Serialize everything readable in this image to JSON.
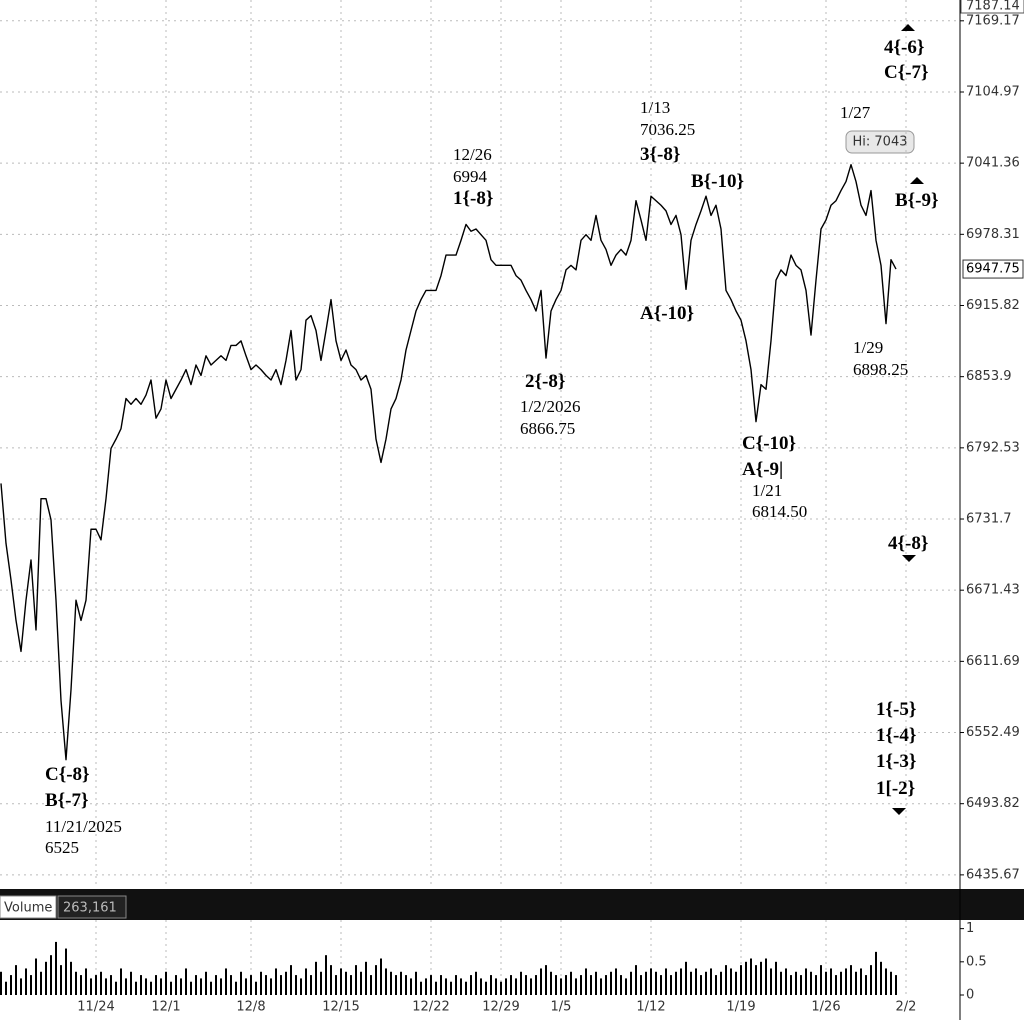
{
  "chart_data": {
    "type": "line",
    "scale": "log",
    "color": "#000000",
    "grid": true,
    "categories": [
      null,
      null,
      null,
      null,
      null,
      null,
      null,
      null,
      null,
      null,
      null,
      null,
      null,
      null,
      null,
      null,
      null,
      null,
      null,
      "11/24",
      null,
      null,
      null,
      null,
      null,
      null,
      null,
      null,
      null,
      null,
      null,
      null,
      null,
      "12/1",
      null,
      null,
      null,
      null,
      null,
      null,
      null,
      null,
      null,
      null,
      null,
      null,
      null,
      null,
      null,
      null,
      "12/8",
      null,
      null,
      null,
      null,
      null,
      null,
      null,
      null,
      null,
      null,
      null,
      null,
      null,
      null,
      null,
      null,
      null,
      "12/15",
      null,
      null,
      null,
      null,
      null,
      null,
      null,
      null,
      null,
      null,
      null,
      null,
      null,
      null,
      null,
      null,
      null,
      "12/22",
      null,
      null,
      null,
      null,
      null,
      null,
      null,
      null,
      null,
      null,
      null,
      null,
      null,
      "12/29",
      null,
      null,
      null,
      null,
      null,
      null,
      null,
      null,
      null,
      null,
      null,
      "1/5",
      null,
      null,
      null,
      null,
      null,
      null,
      null,
      null,
      null,
      null,
      null,
      null,
      null,
      null,
      null,
      null,
      null,
      "1/12",
      null,
      null,
      null,
      null,
      null,
      null,
      null,
      null,
      null,
      null,
      null,
      null,
      null,
      null,
      null,
      null,
      null,
      "1/19",
      null,
      null,
      null,
      null,
      null,
      null,
      null,
      null,
      null,
      null,
      null,
      null,
      null,
      null,
      null,
      null,
      "1/26",
      null,
      null,
      null,
      null,
      null,
      null,
      null,
      null,
      null,
      null,
      null,
      null,
      null,
      null,
      null,
      "2/2"
    ],
    "values": [
      6762,
      6711,
      6680,
      6646,
      6620,
      6663,
      6697,
      6638,
      6749,
      6749,
      6731,
      6663,
      6579,
      6530,
      6588,
      6663,
      6646,
      6663,
      6723,
      6723,
      6714,
      6749,
      6792,
      6800,
      6809,
      6835,
      6830,
      6835,
      6830,
      6838,
      6851,
      6818,
      6826,
      6851,
      6835,
      6843,
      6851,
      6860,
      6847,
      6864,
      6855,
      6872,
      6864,
      6868,
      6872,
      6868,
      6881,
      6881,
      6885,
      6872,
      6860,
      6864,
      6860,
      6855,
      6851,
      6860,
      6847,
      6868,
      6894,
      6851,
      6860,
      6903,
      6907,
      6894,
      6868,
      6894,
      6921,
      6885,
      6868,
      6877,
      6864,
      6860,
      6851,
      6855,
      6843,
      6800,
      6780,
      6800,
      6826,
      6835,
      6851,
      6877,
      6894,
      6911,
      6921,
      6929,
      6929,
      6929,
      6942,
      6960,
      6960,
      6960,
      6973,
      6987,
      6981,
      6983,
      6978,
      6973,
      6956,
      6951,
      6951,
      6951,
      6951,
      6942,
      6938,
      6929,
      6921,
      6911,
      6929,
      6870,
      6911,
      6921,
      6929,
      6947,
      6951,
      6947,
      6973,
      6978,
      6973,
      6995,
      6973,
      6965,
      6951,
      6960,
      6965,
      6960,
      6973,
      7008,
      6991,
      6973,
      7012,
      7008,
      7004,
      6999,
      6987,
      6995,
      6978,
      6930,
      6973,
      6987,
      6999,
      7012,
      6995,
      7004,
      6983,
      6929,
      6921,
      6911,
      6903,
      6885,
      6860,
      6815,
      6847,
      6843,
      6885,
      6938,
      6947,
      6942,
      6960,
      6951,
      6947,
      6929,
      6890,
      6938,
      6983,
      6991,
      7004,
      7008,
      7017,
      7025,
      7040,
      7025,
      7004,
      6995,
      7017,
      6973,
      6951,
      6900,
      6956,
      6947.75,
      null,
      null
    ],
    "ylim": [
      6425,
      7187.14
    ],
    "yticks": [
      6435.67,
      6493.82,
      6552.49,
      6611.69,
      6671.43,
      6731.7,
      6792.53,
      6853.9,
      6915.82,
      6978.31,
      7041.36,
      7104.97,
      7169.17
    ],
    "hi_label": "Hi: 7043",
    "annotations": [
      "C{-8}",
      "B{-7}",
      "11/21/2025",
      "6525",
      "12/26",
      "6994",
      "1{-8}",
      "2{-8}",
      "1/2/2026",
      "6866.75",
      "1/13",
      "7036.25",
      "3{-8}",
      "B{-10}",
      "A{-10}",
      "C{-10}",
      "A{-9|",
      "1/21",
      "6814.50",
      "1/27",
      "1/29",
      "6898.25",
      "4{-6}",
      "C{-7}",
      "B{-9}",
      "4{-8}",
      "1{-5}",
      "1{-4}",
      "1{-3}",
      "1[-2}"
    ],
    "volume": {
      "title": "Volume",
      "current": "263,161",
      "ylim": [
        0,
        1.1
      ],
      "yticks": [
        0,
        0.5,
        1
      ],
      "color": "#000000",
      "values": [
        0.35,
        0.2,
        0.3,
        0.45,
        0.25,
        0.4,
        0.3,
        0.55,
        0.35,
        0.5,
        0.6,
        0.8,
        0.45,
        0.7,
        0.5,
        0.35,
        0.3,
        0.4,
        0.25,
        0.3,
        0.35,
        0.25,
        0.3,
        0.2,
        0.4,
        0.25,
        0.35,
        0.2,
        0.3,
        0.25,
        0.2,
        0.3,
        0.25,
        0.35,
        0.2,
        0.3,
        0.25,
        0.4,
        0.2,
        0.3,
        0.25,
        0.35,
        0.2,
        0.3,
        0.25,
        0.4,
        0.3,
        0.2,
        0.35,
        0.25,
        0.3,
        0.2,
        0.35,
        0.3,
        0.25,
        0.4,
        0.3,
        0.35,
        0.45,
        0.3,
        0.25,
        0.4,
        0.3,
        0.5,
        0.35,
        0.6,
        0.45,
        0.3,
        0.4,
        0.35,
        0.3,
        0.45,
        0.35,
        0.5,
        0.3,
        0.45,
        0.55,
        0.4,
        0.35,
        0.3,
        0.35,
        0.3,
        0.25,
        0.35,
        0.2,
        0.25,
        0.3,
        0.2,
        0.3,
        0.25,
        0.2,
        0.3,
        0.25,
        0.2,
        0.3,
        0.35,
        0.25,
        0.2,
        0.3,
        0.25,
        0.2,
        0.25,
        0.3,
        0.25,
        0.35,
        0.3,
        0.25,
        0.3,
        0.4,
        0.45,
        0.35,
        0.3,
        0.25,
        0.3,
        0.35,
        0.25,
        0.3,
        0.4,
        0.3,
        0.35,
        0.25,
        0.3,
        0.35,
        0.4,
        0.3,
        0.25,
        0.35,
        0.45,
        0.3,
        0.35,
        0.4,
        0.35,
        0.3,
        0.4,
        0.3,
        0.35,
        0.4,
        0.5,
        0.35,
        0.4,
        0.3,
        0.35,
        0.4,
        0.3,
        0.35,
        0.45,
        0.4,
        0.35,
        0.45,
        0.5,
        0.55,
        0.45,
        0.5,
        0.55,
        0.4,
        0.5,
        0.35,
        0.4,
        0.3,
        0.35,
        0.3,
        0.4,
        0.35,
        0.3,
        0.45,
        0.35,
        0.4,
        0.3,
        0.35,
        0.4,
        0.45,
        0.35,
        0.4,
        0.3,
        0.45,
        0.65,
        0.5,
        0.4,
        0.35,
        0.3,
        null,
        null
      ]
    }
  }
}
